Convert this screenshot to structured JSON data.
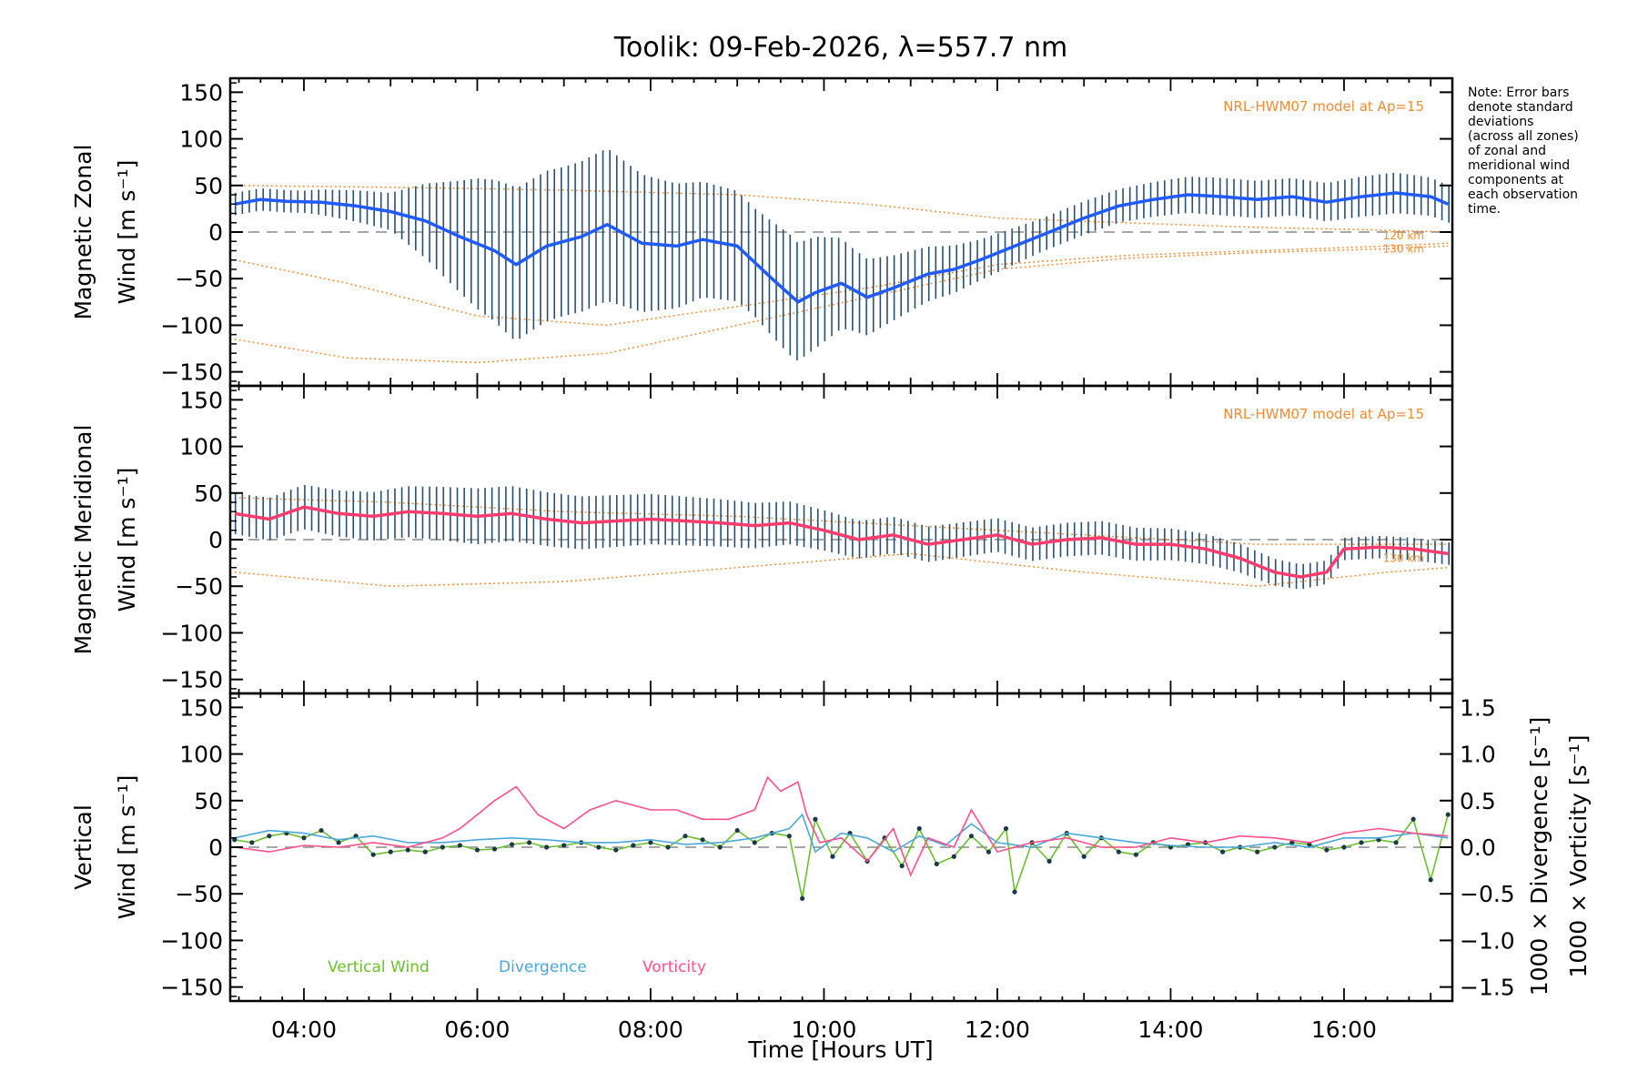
{
  "colors": {
    "axis": "#000000",
    "zonal_mean": "#1f5bff",
    "meridional_mean": "#ff3c6e",
    "vertical_wind": "#6bbf2f",
    "divergence": "#4aa8dc",
    "vorticity": "#ff4f8b",
    "model": "#f08c32",
    "error_bar": "#2a4e6e",
    "zeroline": "#888888"
  },
  "chart_data": {
    "title": "Toolik: 09-Feb-2026, λ=557.7 nm",
    "type": "line",
    "xlabel": "Time [Hours UT]",
    "xlim": [
      3.15,
      17.25
    ],
    "xticks": [
      4,
      6,
      8,
      10,
      12,
      14,
      16
    ],
    "xtick_labels": [
      "04:00",
      "06:00",
      "08:00",
      "10:00",
      "12:00",
      "14:00",
      "16:00"
    ],
    "note": [
      "Note: Error bars",
      "denote standard",
      "deviations",
      "(across all zones)",
      "of zonal and",
      "meridional wind",
      "components at",
      "each observation",
      "time."
    ],
    "panels": [
      {
        "name": "zonal",
        "ylabel_line1": "Magnetic Zonal",
        "ylabel_line2": "Wind [m s⁻¹]",
        "ylim": [
          -165,
          165
        ],
        "yticks": [
          -150,
          -100,
          -50,
          0,
          50,
          100,
          150
        ],
        "ytick_labels": [
          "−150",
          "−100",
          "−50",
          "0",
          "50",
          "100",
          "150"
        ],
        "model_label": "NRL-HWM07 model at Ap=15",
        "model_alt_labels": [
          "120 km",
          "130 km"
        ],
        "mean_wind": {
          "x": [
            3.2,
            3.5,
            3.8,
            4.2,
            4.6,
            5.0,
            5.4,
            5.8,
            6.2,
            6.45,
            6.8,
            7.2,
            7.5,
            7.9,
            8.3,
            8.6,
            9.0,
            9.4,
            9.7,
            9.9,
            10.2,
            10.5,
            10.8,
            11.2,
            11.5,
            11.8,
            12.2,
            12.6,
            13.0,
            13.4,
            13.8,
            14.2,
            14.6,
            15.0,
            15.4,
            15.8,
            16.2,
            16.6,
            17.0,
            17.2
          ],
          "y": [
            30,
            35,
            33,
            32,
            28,
            22,
            12,
            -5,
            -20,
            -35,
            -15,
            -5,
            8,
            -12,
            -15,
            -8,
            -15,
            -50,
            -75,
            -65,
            -55,
            -70,
            -60,
            -45,
            -40,
            -30,
            -15,
            0,
            15,
            28,
            35,
            40,
            38,
            35,
            38,
            32,
            38,
            42,
            38,
            30
          ]
        },
        "error_bar_sd": {
          "x": [
            3.2,
            4.0,
            5.0,
            5.6,
            6.0,
            6.4,
            7.0,
            7.5,
            8.0,
            8.6,
            9.2,
            9.6,
            9.9,
            10.3,
            10.8,
            11.3,
            11.8,
            12.5,
            13.5,
            14.5,
            15.5,
            16.5,
            17.2
          ],
          "sd": [
            12,
            12,
            20,
            50,
            70,
            82,
            80,
            82,
            72,
            62,
            58,
            65,
            60,
            45,
            35,
            28,
            22,
            18,
            18,
            20,
            20,
            22,
            20
          ]
        },
        "model_curves": [
          {
            "name": "upper",
            "x": [
              3.2,
              5.0,
              7.0,
              9.0,
              10.5,
              12.0,
              13.5,
              15.0,
              16.5,
              17.2
            ],
            "y": [
              50,
              48,
              45,
              40,
              30,
              15,
              10,
              5,
              2,
              0
            ]
          },
          {
            "name": "120 km",
            "x": [
              3.2,
              4.5,
              6.0,
              7.5,
              9.0,
              10.5,
              12.0,
              13.5,
              15.0,
              16.5,
              17.2
            ],
            "y": [
              -30,
              -55,
              -90,
              -100,
              -80,
              -60,
              -35,
              -25,
              -20,
              -15,
              -12
            ]
          },
          {
            "name": "130 km",
            "x": [
              3.2,
              4.5,
              6.0,
              7.5,
              9.0,
              10.5,
              12.0,
              13.5,
              15.0,
              16.5,
              17.2
            ],
            "y": [
              -115,
              -135,
              -140,
              -130,
              -100,
              -70,
              -40,
              -28,
              -22,
              -18,
              -15
            ]
          }
        ]
      },
      {
        "name": "meridional",
        "ylabel_line1": "Magnetic Meridional",
        "ylabel_line2": "Wind [m s⁻¹]",
        "ylim": [
          -165,
          165
        ],
        "yticks": [
          -150,
          -100,
          -50,
          0,
          50,
          100,
          150
        ],
        "ytick_labels": [
          "−150",
          "−100",
          "−50",
          "0",
          "50",
          "100",
          "150"
        ],
        "model_label": "NRL-HWM07 model at Ap=15",
        "model_alt_labels": [
          "130 km"
        ],
        "mean_wind": {
          "x": [
            3.2,
            3.6,
            4.0,
            4.4,
            4.8,
            5.2,
            5.6,
            6.0,
            6.4,
            6.8,
            7.2,
            7.6,
            8.0,
            8.4,
            8.8,
            9.2,
            9.6,
            10.0,
            10.4,
            10.8,
            11.2,
            11.6,
            12.0,
            12.4,
            12.8,
            13.2,
            13.6,
            14.0,
            14.4,
            14.8,
            15.2,
            15.5,
            15.8,
            16.0,
            16.4,
            16.8,
            17.2
          ],
          "y": [
            28,
            22,
            35,
            28,
            25,
            30,
            28,
            25,
            28,
            22,
            18,
            20,
            22,
            20,
            18,
            15,
            18,
            10,
            0,
            5,
            -5,
            0,
            5,
            -5,
            0,
            2,
            -5,
            -5,
            -10,
            -20,
            -35,
            -40,
            -35,
            -10,
            -8,
            -10,
            -15
          ]
        },
        "error_bar_sd": {
          "x": [
            3.2,
            4.5,
            6.0,
            7.5,
            9.0,
            10.5,
            12.0,
            13.5,
            15.0,
            16.0,
            17.2
          ],
          "sd": [
            22,
            25,
            30,
            28,
            25,
            20,
            18,
            18,
            15,
            12,
            12
          ]
        },
        "model_curves": [
          {
            "name": "upper",
            "x": [
              3.2,
              5.0,
              7.0,
              9.0,
              11.0,
              13.0,
              15.0,
              16.5,
              17.2
            ],
            "y": [
              45,
              40,
              30,
              25,
              15,
              5,
              -5,
              -5,
              -5
            ]
          },
          {
            "name": "130 km",
            "x": [
              3.2,
              5.0,
              7.0,
              9.0,
              11.0,
              13.0,
              15.0,
              16.5,
              17.2
            ],
            "y": [
              -35,
              -50,
              -45,
              -30,
              -15,
              -35,
              -50,
              -35,
              -30
            ]
          }
        ]
      },
      {
        "name": "vertical",
        "ylabel_line1": "Vertical",
        "ylabel_line2": "Wind [m s⁻¹]",
        "ylim": [
          -165,
          165
        ],
        "yticks": [
          -150,
          -100,
          -50,
          0,
          50,
          100,
          150
        ],
        "ytick_labels": [
          "−150",
          "−100",
          "−50",
          "0",
          "50",
          "100",
          "150"
        ],
        "right_axis": {
          "ylim": [
            -1.65,
            1.65
          ],
          "yticks": [
            -1.5,
            -1.0,
            -0.5,
            0.0,
            0.5,
            1.0,
            1.5
          ],
          "ytick_labels": [
            "−1.5",
            "−1.0",
            "−0.5",
            "0.0",
            "0.5",
            "1.0",
            "1.5"
          ],
          "label_divergence": "1000 × Divergence [s⁻¹]",
          "label_vorticity": "1000 × Vorticity [s⁻¹]"
        },
        "legend": [
          "Vertical Wind",
          "Divergence",
          "Vorticity"
        ],
        "series": [
          {
            "name": "Vertical Wind",
            "axis": "left",
            "x": [
              3.2,
              3.4,
              3.6,
              3.8,
              4.0,
              4.2,
              4.4,
              4.6,
              4.8,
              5.0,
              5.2,
              5.4,
              5.6,
              5.8,
              6.0,
              6.2,
              6.4,
              6.6,
              6.8,
              7.0,
              7.2,
              7.4,
              7.6,
              7.8,
              8.0,
              8.2,
              8.4,
              8.6,
              8.8,
              9.0,
              9.2,
              9.4,
              9.6,
              9.75,
              9.9,
              10.1,
              10.3,
              10.5,
              10.7,
              10.9,
              11.1,
              11.3,
              11.5,
              11.7,
              11.9,
              12.1,
              12.2,
              12.4,
              12.6,
              12.8,
              13.0,
              13.2,
              13.4,
              13.6,
              13.8,
              14.0,
              14.2,
              14.4,
              14.6,
              14.8,
              15.0,
              15.2,
              15.4,
              15.6,
              15.8,
              16.0,
              16.2,
              16.4,
              16.6,
              16.8,
              17.0,
              17.2
            ],
            "y": [
              8,
              5,
              12,
              15,
              10,
              18,
              5,
              12,
              -8,
              -5,
              -3,
              -5,
              0,
              2,
              -3,
              -2,
              3,
              5,
              0,
              2,
              5,
              0,
              -3,
              2,
              5,
              0,
              12,
              8,
              0,
              18,
              5,
              15,
              12,
              -55,
              30,
              -10,
              15,
              -15,
              10,
              -20,
              20,
              -18,
              -10,
              12,
              -5,
              20,
              -48,
              5,
              -15,
              15,
              -10,
              10,
              -5,
              -8,
              5,
              0,
              3,
              5,
              -5,
              0,
              -5,
              0,
              5,
              3,
              -3,
              0,
              5,
              8,
              5,
              30,
              -35,
              35
            ]
          },
          {
            "name": "Divergence",
            "axis": "right",
            "x": [
              3.2,
              3.6,
              4.0,
              4.4,
              4.8,
              5.2,
              5.6,
              6.0,
              6.4,
              6.8,
              7.2,
              7.6,
              8.0,
              8.4,
              8.8,
              9.2,
              9.6,
              9.75,
              9.9,
              10.2,
              10.5,
              10.8,
              11.1,
              11.4,
              11.7,
              12.0,
              12.4,
              12.8,
              13.2,
              13.6,
              14.0,
              14.4,
              14.8,
              15.2,
              15.6,
              16.0,
              16.4,
              16.8,
              17.2
            ],
            "y": [
              0.1,
              0.18,
              0.15,
              0.08,
              0.12,
              0.05,
              0.05,
              0.08,
              0.1,
              0.08,
              0.05,
              0.05,
              0.08,
              0.03,
              0.05,
              0.1,
              0.2,
              0.35,
              -0.05,
              0.15,
              0.1,
              -0.05,
              0.12,
              0.02,
              0.25,
              0.05,
              0.0,
              0.15,
              0.1,
              0.05,
              0.02,
              0.0,
              0.0,
              0.05,
              0.0,
              0.1,
              0.1,
              0.15,
              0.1
            ]
          },
          {
            "name": "Vorticity",
            "axis": "right",
            "x": [
              3.2,
              3.6,
              4.0,
              4.4,
              4.8,
              5.2,
              5.6,
              5.8,
              6.0,
              6.2,
              6.45,
              6.7,
              7.0,
              7.3,
              7.6,
              8.0,
              8.3,
              8.6,
              8.9,
              9.2,
              9.35,
              9.5,
              9.7,
              9.8,
              9.95,
              10.2,
              10.5,
              10.8,
              11.0,
              11.2,
              11.5,
              11.7,
              12.0,
              12.4,
              12.8,
              13.2,
              13.6,
              14.0,
              14.4,
              14.8,
              15.2,
              15.6,
              16.0,
              16.4,
              16.8,
              17.2
            ],
            "y": [
              0.0,
              -0.05,
              0.02,
              0.0,
              0.05,
              0.0,
              0.1,
              0.2,
              0.35,
              0.5,
              0.65,
              0.35,
              0.2,
              0.4,
              0.5,
              0.4,
              0.4,
              0.3,
              0.3,
              0.4,
              0.75,
              0.6,
              0.7,
              0.35,
              0.05,
              0.1,
              -0.15,
              0.2,
              -0.3,
              0.1,
              0.0,
              0.4,
              -0.05,
              0.05,
              0.1,
              0.0,
              0.0,
              0.1,
              0.05,
              0.12,
              0.1,
              0.05,
              0.15,
              0.2,
              0.15,
              0.12
            ]
          }
        ]
      }
    ]
  }
}
